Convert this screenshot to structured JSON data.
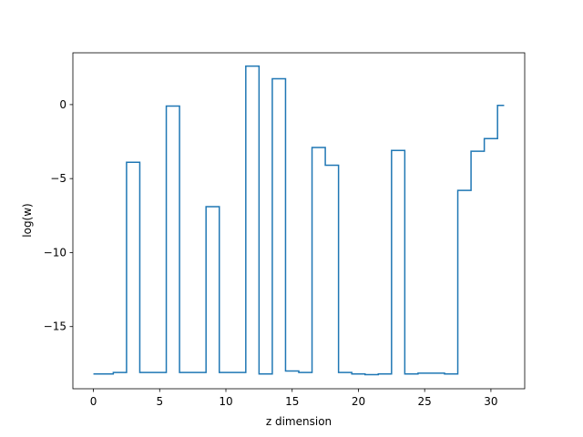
{
  "chart_data": {
    "type": "line",
    "step": "mid",
    "xlabel": "z dimension",
    "ylabel": "log(w)",
    "xlim": [
      -1.55,
      32.55
    ],
    "ylim": [
      -19.2,
      3.5
    ],
    "xticks": [
      0,
      5,
      10,
      15,
      20,
      25,
      30
    ],
    "yticks": [
      0,
      -5,
      -10,
      -15
    ],
    "grid": false,
    "series": [
      {
        "color": "#1f77b4",
        "x": [
          0,
          1,
          2,
          3,
          4,
          5,
          6,
          7,
          8,
          9,
          10,
          11,
          12,
          13,
          14,
          15,
          16,
          17,
          18,
          19,
          20,
          21,
          22,
          23,
          24,
          25,
          26,
          27,
          28,
          29,
          30,
          31
        ],
        "y": [
          -18.2,
          -18.2,
          -18.1,
          -3.9,
          -18.1,
          -18.1,
          -0.1,
          -18.1,
          -18.1,
          -6.9,
          -18.1,
          -18.1,
          2.6,
          -18.2,
          1.75,
          -18.0,
          -18.1,
          -2.9,
          -4.1,
          -18.1,
          -18.2,
          -18.25,
          -18.2,
          -3.1,
          -18.2,
          -18.15,
          -18.15,
          -18.2,
          -5.8,
          -3.15,
          -2.3,
          -0.05
        ]
      }
    ]
  }
}
